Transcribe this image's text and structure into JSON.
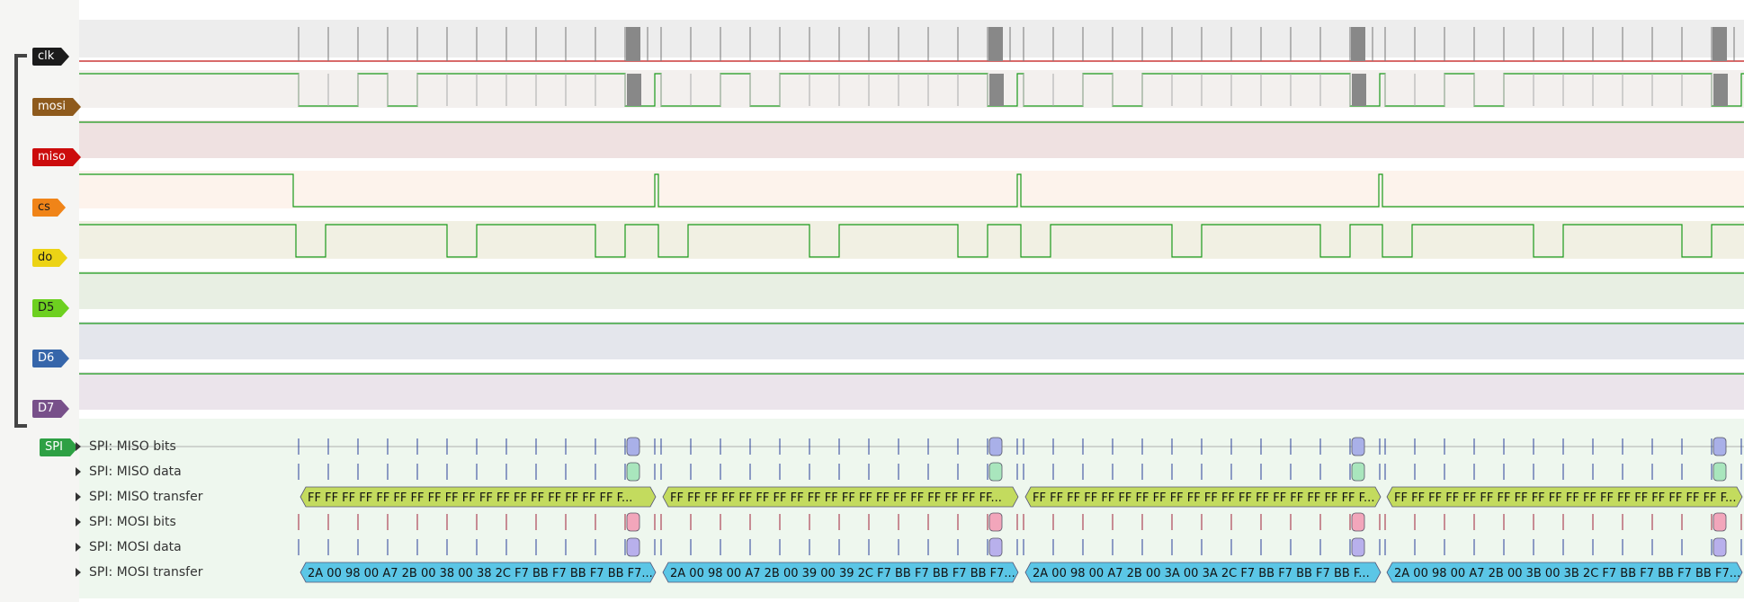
{
  "channels": [
    {
      "name": "clk",
      "bg": "#ededed",
      "color": "#1b1b1b",
      "text_color": "#ffffff"
    },
    {
      "name": "mosi",
      "bg": "#f3f0ee",
      "color": "#8e5a1c",
      "text_color": "#ffffff"
    },
    {
      "name": "miso",
      "bg": "#efe1e1",
      "color": "#cc0c0c",
      "text_color": "#ffffff"
    },
    {
      "name": "cs",
      "bg": "#fdf3ec",
      "color": "#f08418",
      "text_color": "#1b1b1b"
    },
    {
      "name": "do",
      "bg": "#f1f0e3",
      "color": "#ecd315",
      "text_color": "#1b1b1b"
    },
    {
      "name": "D5",
      "bg": "#e8efe3",
      "color": "#6dd020",
      "text_color": "#1b1b1b"
    },
    {
      "name": "D6",
      "bg": "#e4e6ec",
      "color": "#3666aa",
      "text_color": "#ffffff"
    },
    {
      "name": "D7",
      "bg": "#ebe4eb",
      "color": "#78508a",
      "text_color": "#ffffff"
    }
  ],
  "decoder": {
    "name": "SPI",
    "color": "#2ea044",
    "text_color": "#ffffff",
    "bg": "#eef7ee",
    "rows": [
      "SPI: MISO bits",
      "SPI: MISO data",
      "SPI: MISO transfer",
      "SPI: MOSI bits",
      "SPI: MOSI data",
      "SPI: MOSI transfer"
    ],
    "miso_transfer": [
      "FF FF FF FF FF FF FF FF FF FF FF FF FF FF FF FF FF FF F...",
      "FF FF FF FF FF FF FF FF FF FF FF FF FF FF FF FF FF FF FF...",
      "FF FF FF FF FF FF FF FF FF FF FF FF FF FF FF FF FF FF FF F...",
      "FF FF FF FF FF FF FF FF FF FF FF FF FF FF FF FF FF FF FF F..."
    ],
    "mosi_transfer": [
      "2A 00 98 00 A7 2B 00 38 00 38 2C F7 BB F7 BB F7 BB F7...",
      "2A 00 98 00 A7 2B 00 39 00 39 2C F7 BB F7 BB F7 BB F7...",
      "2A 00 98 00 A7 2B 00 3A 00 3A 2C F7 BB F7 BB F7 BB F...",
      "2A 00 98 00 A7 2B 00 3B 00 3B 2C F7 BB F7 BB F7 BB F7..."
    ],
    "colors": {
      "miso_transfer": "#c3db5e",
      "mosi_transfer": "#5bc6e6",
      "miso_bits_marker": "#a9b0e8",
      "miso_data_marker": "#a9e6bd",
      "mosi_bits_marker": "#f2a6bb",
      "mosi_data_marker": "#b8b0ec"
    }
  },
  "colors": {
    "trace_high": "#1a9a1a",
    "trace_low": "#c01010",
    "tick": "#555555"
  }
}
